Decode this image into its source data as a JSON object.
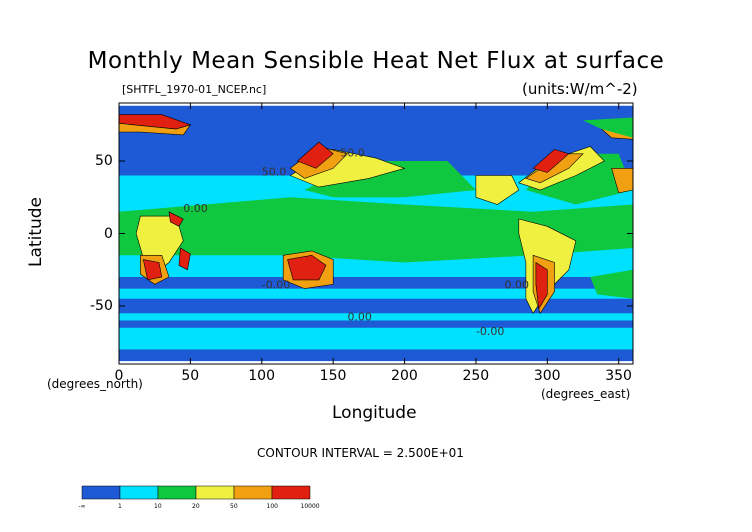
{
  "chart_data": {
    "type": "heatmap",
    "title": "Monthly Mean Sensible Heat Net Flux at surface",
    "subtitle": "[SHTFL_1970-01_NCEP.nc]",
    "units": "(units:W/m^-2)",
    "xlabel": "Longitude",
    "ylabel": "Latitude",
    "x_unit_note": "(degrees_east)",
    "y_unit_note": "(degrees_north)",
    "xlim": [
      0,
      360
    ],
    "ylim": [
      -90,
      90
    ],
    "x_ticks": [
      0,
      50,
      100,
      150,
      200,
      250,
      300,
      350
    ],
    "y_ticks": [
      50,
      0,
      -50
    ],
    "contour_interval_text": "CONTOUR INTERVAL = 2.500E+01",
    "contour_labels": [
      "50.0",
      "50.0",
      "-0.00",
      "0.00",
      "0.00",
      "-0.00",
      "0.00"
    ],
    "legend": {
      "labels": [
        "-∞",
        "1",
        "10",
        "20",
        "50",
        "100",
        "10000"
      ],
      "colors": [
        "#1e5ad6",
        "#00e0ff",
        "#10c840",
        "#f0f040",
        "#f0a010",
        "#e02010"
      ]
    },
    "regions": [
      {
        "name": "ocean-background",
        "level": 1,
        "polygon": [
          [
            0,
            88
          ],
          [
            360,
            88
          ],
          [
            360,
            -88
          ],
          [
            0,
            -88
          ]
        ]
      },
      {
        "name": "tropical-band",
        "level": 2,
        "polygon": [
          [
            0,
            40
          ],
          [
            360,
            40
          ],
          [
            360,
            -30
          ],
          [
            0,
            -30
          ]
        ]
      },
      {
        "name": "tropical-green",
        "level": 3,
        "polygon": [
          [
            0,
            15
          ],
          [
            120,
            25
          ],
          [
            200,
            20
          ],
          [
            290,
            15
          ],
          [
            360,
            20
          ],
          [
            360,
            -10
          ],
          [
            290,
            -15
          ],
          [
            200,
            -20
          ],
          [
            120,
            -15
          ],
          [
            0,
            -15
          ]
        ]
      },
      {
        "name": "southern-ocean",
        "level": 2,
        "polygon": [
          [
            0,
            -38
          ],
          [
            360,
            -38
          ],
          [
            360,
            -60
          ],
          [
            0,
            -60
          ]
        ]
      },
      {
        "name": "southern-ocean-blue",
        "level": 1,
        "polygon": [
          [
            0,
            -45
          ],
          [
            360,
            -45
          ],
          [
            360,
            -55
          ],
          [
            0,
            -55
          ]
        ]
      },
      {
        "name": "antarctic-cyan",
        "level": 2,
        "polygon": [
          [
            0,
            -65
          ],
          [
            360,
            -65
          ],
          [
            360,
            -80
          ],
          [
            0,
            -80
          ]
        ]
      },
      {
        "name": "arctic-blue",
        "level": 1,
        "polygon": [
          [
            0,
            88
          ],
          [
            360,
            88
          ],
          [
            360,
            70
          ],
          [
            0,
            70
          ]
        ]
      },
      {
        "name": "pacific-nw-green",
        "level": 3,
        "polygon": [
          [
            130,
            30
          ],
          [
            170,
            50
          ],
          [
            230,
            50
          ],
          [
            250,
            30
          ],
          [
            200,
            25
          ],
          [
            150,
            25
          ]
        ]
      },
      {
        "name": "atlantic-nw-green",
        "level": 3,
        "polygon": [
          [
            285,
            30
          ],
          [
            310,
            55
          ],
          [
            350,
            55
          ],
          [
            360,
            30
          ],
          [
            320,
            20
          ]
        ]
      },
      {
        "name": "kuroshio-yellow",
        "level": 4,
        "polygon": [
          [
            120,
            40
          ],
          [
            150,
            58
          ],
          [
            180,
            52
          ],
          [
            200,
            45
          ],
          [
            175,
            38
          ],
          [
            140,
            32
          ]
        ]
      },
      {
        "name": "kuroshio-orange",
        "level": 5,
        "polygon": [
          [
            120,
            45
          ],
          [
            140,
            60
          ],
          [
            160,
            55
          ],
          [
            150,
            45
          ],
          [
            130,
            38
          ]
        ]
      },
      {
        "name": "kuroshio-red",
        "level": 6,
        "polygon": [
          [
            125,
            50
          ],
          [
            140,
            63
          ],
          [
            150,
            55
          ],
          [
            138,
            45
          ]
        ]
      },
      {
        "name": "gulfstream-yellow",
        "level": 4,
        "polygon": [
          [
            280,
            35
          ],
          [
            300,
            50
          ],
          [
            330,
            60
          ],
          [
            340,
            50
          ],
          [
            320,
            40
          ],
          [
            295,
            30
          ]
        ]
      },
      {
        "name": "gulfstream-orange",
        "level": 5,
        "polygon": [
          [
            285,
            38
          ],
          [
            310,
            55
          ],
          [
            325,
            55
          ],
          [
            315,
            45
          ],
          [
            295,
            35
          ]
        ]
      },
      {
        "name": "gulfstream-red",
        "level": 6,
        "polygon": [
          [
            290,
            45
          ],
          [
            305,
            58
          ],
          [
            315,
            55
          ],
          [
            300,
            42
          ]
        ]
      },
      {
        "name": "europe-orange",
        "level": 5,
        "polygon": [
          [
            345,
            45
          ],
          [
            360,
            45
          ],
          [
            360,
            30
          ],
          [
            350,
            28
          ]
        ]
      },
      {
        "name": "arctic-red-top-left",
        "level": 6,
        "polygon": [
          [
            0,
            82
          ],
          [
            30,
            82
          ],
          [
            50,
            75
          ],
          [
            40,
            72
          ],
          [
            10,
            75
          ],
          [
            0,
            76
          ]
        ]
      },
      {
        "name": "arctic-orange-top-left",
        "level": 5,
        "polygon": [
          [
            0,
            76
          ],
          [
            10,
            75
          ],
          [
            40,
            72
          ],
          [
            50,
            75
          ],
          [
            45,
            68
          ],
          [
            15,
            70
          ],
          [
            0,
            70
          ]
        ]
      },
      {
        "name": "arctic-orange-top-right",
        "level": 5,
        "polygon": [
          [
            338,
            72
          ],
          [
            360,
            74
          ],
          [
            360,
            65
          ],
          [
            345,
            66
          ]
        ]
      },
      {
        "name": "arctic-green-atlantic",
        "level": 3,
        "polygon": [
          [
            325,
            78
          ],
          [
            360,
            80
          ],
          [
            360,
            66
          ],
          [
            338,
            72
          ]
        ]
      },
      {
        "name": "africa-yellow",
        "level": 4,
        "polygon": [
          [
            15,
            12
          ],
          [
            40,
            12
          ],
          [
            45,
            -5
          ],
          [
            35,
            -20
          ],
          [
            25,
            -28
          ],
          [
            18,
            -20
          ],
          [
            12,
            0
          ]
        ]
      },
      {
        "name": "africa-orange",
        "level": 5,
        "polygon": [
          [
            15,
            -15
          ],
          [
            30,
            -15
          ],
          [
            35,
            -30
          ],
          [
            25,
            -35
          ],
          [
            15,
            -28
          ]
        ]
      },
      {
        "name": "africa-red",
        "level": 6,
        "polygon": [
          [
            17,
            -18
          ],
          [
            28,
            -20
          ],
          [
            30,
            -30
          ],
          [
            20,
            -32
          ]
        ]
      },
      {
        "name": "madagascar-red",
        "level": 6,
        "polygon": [
          [
            43,
            -10
          ],
          [
            50,
            -14
          ],
          [
            48,
            -25
          ],
          [
            42,
            -22
          ]
        ]
      },
      {
        "name": "red-sea-red",
        "level": 6,
        "polygon": [
          [
            35,
            15
          ],
          [
            45,
            10
          ],
          [
            42,
            5
          ],
          [
            36,
            8
          ]
        ]
      },
      {
        "name": "australia-orange",
        "level": 5,
        "polygon": [
          [
            115,
            -15
          ],
          [
            135,
            -12
          ],
          [
            150,
            -18
          ],
          [
            150,
            -35
          ],
          [
            130,
            -38
          ],
          [
            115,
            -32
          ]
        ]
      },
      {
        "name": "australia-red",
        "level": 6,
        "polygon": [
          [
            118,
            -18
          ],
          [
            135,
            -15
          ],
          [
            145,
            -22
          ],
          [
            140,
            -32
          ],
          [
            122,
            -32
          ]
        ]
      },
      {
        "name": "south-america-yellow",
        "level": 4,
        "polygon": [
          [
            280,
            10
          ],
          [
            300,
            5
          ],
          [
            320,
            -5
          ],
          [
            315,
            -25
          ],
          [
            300,
            -40
          ],
          [
            290,
            -55
          ],
          [
            285,
            -45
          ],
          [
            285,
            -20
          ],
          [
            280,
            0
          ]
        ]
      },
      {
        "name": "south-america-orange",
        "level": 5,
        "polygon": [
          [
            290,
            -15
          ],
          [
            305,
            -20
          ],
          [
            305,
            -40
          ],
          [
            295,
            -55
          ],
          [
            290,
            -40
          ]
        ]
      },
      {
        "name": "south-america-red",
        "level": 6,
        "polygon": [
          [
            292,
            -20
          ],
          [
            300,
            -25
          ],
          [
            300,
            -42
          ],
          [
            294,
            -52
          ],
          [
            292,
            -35
          ]
        ]
      },
      {
        "name": "north-america-yellow",
        "level": 4,
        "polygon": [
          [
            250,
            40
          ],
          [
            275,
            40
          ],
          [
            280,
            30
          ],
          [
            265,
            20
          ],
          [
            250,
            25
          ]
        ]
      },
      {
        "name": "south-atlantic-green",
        "level": 3,
        "polygon": [
          [
            330,
            -30
          ],
          [
            360,
            -25
          ],
          [
            360,
            -45
          ],
          [
            335,
            -42
          ]
        ]
      }
    ]
  }
}
